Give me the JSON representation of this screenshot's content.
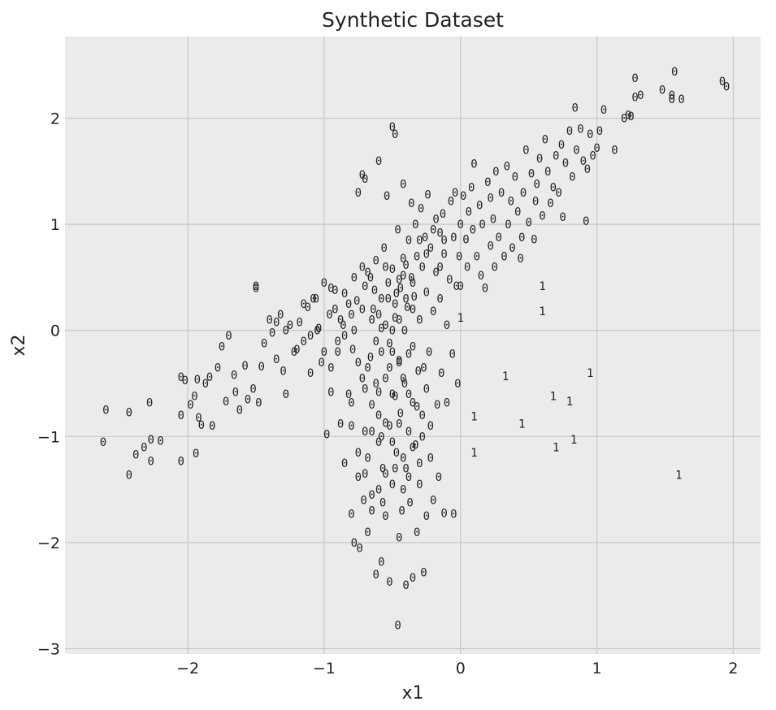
{
  "chart_data": {
    "type": "scatter",
    "title": "Synthetic Dataset",
    "xlabel": "x1",
    "ylabel": "x2",
    "xlim": [
      -2.9,
      2.2
    ],
    "ylim": [
      -3.05,
      2.77
    ],
    "xticks": [
      -2,
      -1,
      0,
      1,
      2
    ],
    "yticks": [
      -3,
      -2,
      -1,
      0,
      1,
      2
    ],
    "xtick_labels": [
      "−2",
      "−1",
      "0",
      "1",
      "2"
    ],
    "ytick_labels": [
      "−3",
      "−2",
      "−1",
      "0",
      "1",
      "2"
    ],
    "grid": true,
    "marker_style": "class label text",
    "class_1_points": [
      [
        0.0,
        0.12
      ],
      [
        0.6,
        0.42
      ],
      [
        0.6,
        0.18
      ],
      [
        0.95,
        -0.4
      ],
      [
        0.33,
        -0.43
      ],
      [
        0.68,
        -0.62
      ],
      [
        0.8,
        -0.67
      ],
      [
        0.1,
        -0.81
      ],
      [
        0.45,
        -0.88
      ],
      [
        0.7,
        -1.1
      ],
      [
        0.83,
        -1.03
      ],
      [
        0.1,
        -1.15
      ],
      [
        1.6,
        -1.36
      ]
    ],
    "class_0_points": [
      [
        -2.62,
        -1.05
      ],
      [
        -2.6,
        -0.75
      ],
      [
        -2.43,
        -1.36
      ],
      [
        -2.43,
        -0.77
      ],
      [
        -2.38,
        -1.17
      ],
      [
        -2.32,
        -1.1
      ],
      [
        -2.28,
        -0.68
      ],
      [
        -2.27,
        -1.03
      ],
      [
        -2.27,
        -1.23
      ],
      [
        -2.2,
        -1.04
      ],
      [
        -2.05,
        -0.44
      ],
      [
        -2.05,
        -0.8
      ],
      [
        -2.05,
        -1.23
      ],
      [
        -2.02,
        -0.47
      ],
      [
        -1.98,
        -0.7
      ],
      [
        -1.95,
        -0.62
      ],
      [
        -1.94,
        -1.16
      ],
      [
        -1.93,
        -0.46
      ],
      [
        -1.92,
        -0.82
      ],
      [
        -1.9,
        -0.89
      ],
      [
        -1.87,
        -0.5
      ],
      [
        -1.84,
        -0.44
      ],
      [
        -1.82,
        -0.9
      ],
      [
        -1.78,
        -0.35
      ],
      [
        -1.75,
        -0.15
      ],
      [
        -1.72,
        -0.67
      ],
      [
        -1.7,
        -0.05
      ],
      [
        -1.66,
        -0.42
      ],
      [
        -1.65,
        -0.58
      ],
      [
        -1.62,
        -0.75
      ],
      [
        -1.58,
        -0.33
      ],
      [
        -1.56,
        -0.65
      ],
      [
        -1.52,
        -0.55
      ],
      [
        -1.5,
        0.4
      ],
      [
        -1.5,
        0.42
      ],
      [
        -1.48,
        -0.68
      ],
      [
        -1.46,
        -0.34
      ],
      [
        -1.44,
        -0.12
      ],
      [
        -1.4,
        0.1
      ],
      [
        -1.38,
        -0.02
      ],
      [
        -1.35,
        -0.27
      ],
      [
        -1.32,
        0.15
      ],
      [
        -1.3,
        -0.38
      ],
      [
        -1.28,
        -0.6
      ],
      [
        -1.25,
        0.05
      ],
      [
        -1.2,
        -0.18
      ],
      [
        -1.15,
        -0.1
      ],
      [
        -1.12,
        0.22
      ],
      [
        -1.1,
        -0.4
      ],
      [
        -1.06,
        0.3
      ],
      [
        -1.04,
        0.02
      ],
      [
        -1.02,
        -0.3
      ],
      [
        -1.0,
        0.45
      ],
      [
        -0.98,
        -0.98
      ],
      [
        -0.96,
        0.15
      ],
      [
        -0.95,
        -0.58
      ],
      [
        -0.92,
        0.38
      ],
      [
        -0.9,
        -0.1
      ],
      [
        -0.88,
        -0.88
      ],
      [
        -0.86,
        0.05
      ],
      [
        -0.85,
        -1.25
      ],
      [
        -0.82,
        0.25
      ],
      [
        -0.8,
        -0.68
      ],
      [
        -0.8,
        -1.73
      ],
      [
        -0.79,
        -0.18
      ],
      [
        -0.78,
        0.0
      ],
      [
        -0.78,
        -2.0
      ],
      [
        -0.76,
        0.28
      ],
      [
        -0.75,
        1.3
      ],
      [
        -0.75,
        -1.38
      ],
      [
        -0.74,
        -2.05
      ],
      [
        -0.72,
        1.47
      ],
      [
        -0.72,
        0.6
      ],
      [
        -0.72,
        -0.45
      ],
      [
        -0.71,
        -1.6
      ],
      [
        -0.7,
        1.43
      ],
      [
        -0.7,
        0.42
      ],
      [
        -0.7,
        -0.95
      ],
      [
        -0.68,
        -1.2
      ],
      [
        -0.68,
        -1.9
      ],
      [
        -0.66,
        0.5
      ],
      [
        -0.66,
        -0.25
      ],
      [
        -0.65,
        -0.7
      ],
      [
        -0.65,
        -1.55
      ],
      [
        -0.64,
        0.2
      ],
      [
        -0.62,
        -2.3
      ],
      [
        -0.62,
        0.66
      ],
      [
        -0.6,
        1.6
      ],
      [
        -0.6,
        -0.58
      ],
      [
        -0.6,
        -1.05
      ],
      [
        -0.58,
        -2.18
      ],
      [
        -0.58,
        0.02
      ],
      [
        -0.57,
        -1.3
      ],
      [
        -0.56,
        0.78
      ],
      [
        -0.55,
        -0.87
      ],
      [
        -0.55,
        -1.75
      ],
      [
        -0.54,
        1.27
      ],
      [
        -0.53,
        0.3
      ],
      [
        -0.52,
        -0.35
      ],
      [
        -0.52,
        -2.37
      ],
      [
        -0.5,
        1.92
      ],
      [
        -0.5,
        0.58
      ],
      [
        -0.5,
        -0.6
      ],
      [
        -0.5,
        -1.45
      ],
      [
        -0.48,
        1.85
      ],
      [
        -0.48,
        0.12
      ],
      [
        -0.47,
        -1.15
      ],
      [
        -0.46,
        -2.78
      ],
      [
        -0.46,
        0.95
      ],
      [
        -0.45,
        -0.28
      ],
      [
        -0.45,
        -1.95
      ],
      [
        -0.44,
        0.4
      ],
      [
        -0.44,
        -0.78
      ],
      [
        -0.43,
        -1.7
      ],
      [
        -0.42,
        1.38
      ],
      [
        -0.42,
        0.68
      ],
      [
        -0.41,
        0.0
      ],
      [
        -0.41,
        -0.5
      ],
      [
        -0.4,
        -1.3
      ],
      [
        -0.4,
        -2.4
      ],
      [
        -0.39,
        0.22
      ],
      [
        -0.38,
        0.85
      ],
      [
        -0.38,
        -0.95
      ],
      [
        -0.37,
        -1.62
      ],
      [
        -0.36,
        1.2
      ],
      [
        -0.36,
        0.5
      ],
      [
        -0.35,
        -0.15
      ],
      [
        -0.35,
        -0.68
      ],
      [
        -0.35,
        -2.33
      ],
      [
        -0.34,
        0.32
      ],
      [
        -0.33,
        1.0
      ],
      [
        -0.33,
        -1.08
      ],
      [
        -0.32,
        -1.9
      ],
      [
        -0.32,
        0.7
      ],
      [
        -0.31,
        -0.38
      ],
      [
        -0.3,
        0.1
      ],
      [
        -0.3,
        -1.45
      ],
      [
        -0.29,
        1.15
      ],
      [
        -0.28,
        0.6
      ],
      [
        -0.28,
        -0.8
      ],
      [
        -0.27,
        -2.28
      ],
      [
        -0.26,
        0.88
      ],
      [
        -0.25,
        0.36
      ],
      [
        -0.25,
        -0.55
      ],
      [
        -0.25,
        -1.75
      ],
      [
        -0.24,
        1.28
      ],
      [
        -0.23,
        -0.2
      ],
      [
        -0.22,
        -1.2
      ],
      [
        -0.22,
        0.78
      ],
      [
        -0.2,
        0.18
      ],
      [
        -0.2,
        -1.6
      ],
      [
        -0.18,
        1.05
      ],
      [
        -0.18,
        0.55
      ],
      [
        -0.17,
        -0.7
      ],
      [
        -0.16,
        -1.38
      ],
      [
        -0.15,
        0.92
      ],
      [
        -0.15,
        0.3
      ],
      [
        -0.14,
        -0.4
      ],
      [
        -0.13,
        1.1
      ],
      [
        -0.12,
        0.72
      ],
      [
        -0.12,
        -1.72
      ],
      [
        -0.1,
        0.05
      ],
      [
        -0.1,
        -0.68
      ],
      [
        -0.08,
        0.48
      ],
      [
        -0.07,
        1.22
      ],
      [
        -0.06,
        -0.22
      ],
      [
        -0.05,
        0.88
      ],
      [
        -0.05,
        -1.73
      ],
      [
        -0.04,
        1.3
      ],
      [
        -0.03,
        0.42
      ],
      [
        -0.02,
        -0.5
      ],
      [
        -0.01,
        0.7
      ],
      [
        0.0,
        1.0
      ],
      [
        0.0,
        0.42
      ],
      [
        0.02,
        1.27
      ],
      [
        0.04,
        0.86
      ],
      [
        0.05,
        0.6
      ],
      [
        0.06,
        1.12
      ],
      [
        0.08,
        1.35
      ],
      [
        0.09,
        0.95
      ],
      [
        0.1,
        1.57
      ],
      [
        0.12,
        0.7
      ],
      [
        0.14,
        1.18
      ],
      [
        0.15,
        0.52
      ],
      [
        0.16,
        1.0
      ],
      [
        0.18,
        0.4
      ],
      [
        0.2,
        1.4
      ],
      [
        0.22,
        0.8
      ],
      [
        0.22,
        1.25
      ],
      [
        0.24,
        1.05
      ],
      [
        0.25,
        0.6
      ],
      [
        0.26,
        1.5
      ],
      [
        0.28,
        0.88
      ],
      [
        0.3,
        1.3
      ],
      [
        0.32,
        0.7
      ],
      [
        0.34,
        1.55
      ],
      [
        0.35,
        1.0
      ],
      [
        0.37,
        1.22
      ],
      [
        0.38,
        0.78
      ],
      [
        0.4,
        1.45
      ],
      [
        0.42,
        1.12
      ],
      [
        0.44,
        0.68
      ],
      [
        0.45,
        0.88
      ],
      [
        0.46,
        1.3
      ],
      [
        0.48,
        1.7
      ],
      [
        0.5,
        1.02
      ],
      [
        0.52,
        1.48
      ],
      [
        0.54,
        0.86
      ],
      [
        0.55,
        1.22
      ],
      [
        0.56,
        1.38
      ],
      [
        0.58,
        1.62
      ],
      [
        0.6,
        1.08
      ],
      [
        0.62,
        1.8
      ],
      [
        0.64,
        1.5
      ],
      [
        0.66,
        1.2
      ],
      [
        0.68,
        1.35
      ],
      [
        0.7,
        1.65
      ],
      [
        0.72,
        1.3
      ],
      [
        0.74,
        1.75
      ],
      [
        0.75,
        1.07
      ],
      [
        0.77,
        1.58
      ],
      [
        0.8,
        1.88
      ],
      [
        0.82,
        1.45
      ],
      [
        0.84,
        2.1
      ],
      [
        0.85,
        1.7
      ],
      [
        0.88,
        1.9
      ],
      [
        0.9,
        1.6
      ],
      [
        0.92,
        1.03
      ],
      [
        0.93,
        1.52
      ],
      [
        0.95,
        1.85
      ],
      [
        0.97,
        1.65
      ],
      [
        1.0,
        1.72
      ],
      [
        1.02,
        1.88
      ],
      [
        1.05,
        2.08
      ],
      [
        1.13,
        1.7
      ],
      [
        1.2,
        2.0
      ],
      [
        1.23,
        2.03
      ],
      [
        1.25,
        2.02
      ],
      [
        1.28,
        2.2
      ],
      [
        1.28,
        2.38
      ],
      [
        1.32,
        2.22
      ],
      [
        1.48,
        2.27
      ],
      [
        1.55,
        2.18
      ],
      [
        1.55,
        2.22
      ],
      [
        1.57,
        2.44
      ],
      [
        1.62,
        2.18
      ],
      [
        1.92,
        2.35
      ],
      [
        1.95,
        2.3
      ],
      [
        -0.35,
        0.45
      ],
      [
        -0.42,
        0.52
      ],
      [
        -0.47,
        0.35
      ],
      [
        -0.53,
        0.45
      ],
      [
        -0.58,
        0.3
      ],
      [
        -0.63,
        0.38
      ],
      [
        -0.48,
        0.25
      ],
      [
        -0.4,
        0.62
      ],
      [
        -0.55,
        0.6
      ],
      [
        -0.45,
        0.48
      ],
      [
        -0.38,
        -0.22
      ],
      [
        -0.45,
        -0.3
      ],
      [
        -0.5,
        -0.2
      ],
      [
        -0.55,
        -0.45
      ],
      [
        -0.48,
        -0.62
      ],
      [
        -0.42,
        -0.45
      ],
      [
        -0.6,
        -0.8
      ],
      [
        -0.52,
        -0.9
      ],
      [
        -0.45,
        -0.88
      ],
      [
        -0.38,
        -0.6
      ],
      [
        -0.65,
        -0.95
      ],
      [
        -0.58,
        -1.0
      ],
      [
        -0.5,
        -1.05
      ],
      [
        -0.42,
        -1.2
      ],
      [
        -0.35,
        -1.1
      ],
      [
        -0.62,
        -0.5
      ],
      [
        -0.7,
        -0.55
      ],
      [
        -0.68,
        -0.35
      ],
      [
        -0.75,
        -0.3
      ],
      [
        -0.82,
        -0.6
      ],
      [
        -0.88,
        0.1
      ],
      [
        -0.92,
        0.2
      ],
      [
        -0.95,
        0.4
      ],
      [
        -0.85,
        0.35
      ],
      [
        -0.78,
        0.5
      ],
      [
        -1.05,
        0.0
      ],
      [
        -1.1,
        -0.05
      ],
      [
        -1.18,
        0.08
      ],
      [
        -1.22,
        -0.2
      ],
      [
        -1.28,
        0.0
      ],
      [
        -0.3,
        0.85
      ],
      [
        -0.25,
        0.72
      ],
      [
        -0.2,
        0.95
      ],
      [
        -0.15,
        0.6
      ],
      [
        -0.12,
        0.85
      ],
      [
        -0.28,
        -1.0
      ],
      [
        -0.22,
        -0.9
      ],
      [
        -0.3,
        -1.25
      ],
      [
        -0.32,
        -0.72
      ],
      [
        -0.27,
        -0.35
      ],
      [
        -0.65,
        0.1
      ],
      [
        -0.6,
        0.15
      ],
      [
        -0.55,
        0.05
      ],
      [
        -0.5,
        0.0
      ],
      [
        -0.62,
        -0.1
      ],
      [
        -0.58,
        -0.2
      ],
      [
        -0.52,
        -0.12
      ],
      [
        -0.45,
        0.1
      ],
      [
        -0.4,
        0.3
      ],
      [
        -0.35,
        0.2
      ],
      [
        -0.68,
        0.55
      ],
      [
        -0.72,
        0.2
      ],
      [
        -0.8,
        0.15
      ],
      [
        -0.85,
        -0.05
      ],
      [
        -0.9,
        -0.2
      ],
      [
        -0.95,
        -0.35
      ],
      [
        -1.0,
        -0.2
      ],
      [
        -1.08,
        0.3
      ],
      [
        -1.15,
        0.25
      ],
      [
        -1.35,
        0.08
      ],
      [
        -0.55,
        -1.35
      ],
      [
        -0.48,
        -1.3
      ],
      [
        -0.42,
        -1.5
      ],
      [
        -0.38,
        -1.38
      ],
      [
        -0.6,
        -1.5
      ],
      [
        -0.65,
        -1.7
      ],
      [
        -0.7,
        -1.35
      ],
      [
        -0.75,
        -1.15
      ],
      [
        -0.8,
        -0.9
      ],
      [
        -0.57,
        -1.62
      ]
    ]
  }
}
